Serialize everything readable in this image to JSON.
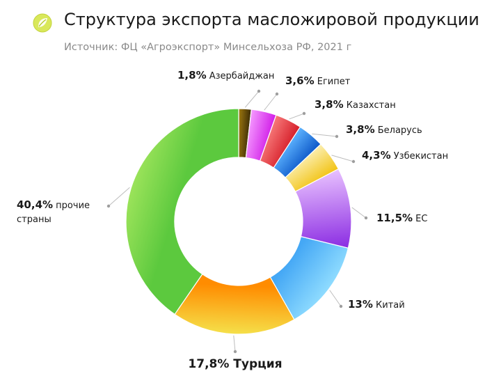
{
  "header": {
    "title": "Структура экспорта масложировой продукции",
    "subtitle": "Источник: ФЦ «Агроэкспорт» Минсельхоза РФ, 2021 г",
    "logo_icon": "leaf-circle-logo"
  },
  "colors": {
    "leader_line": "#bdbdbd",
    "dot": "#9e9e9e"
  },
  "chart_data": {
    "type": "pie",
    "variant": "donut",
    "unit": "%",
    "slices": [
      {
        "name": "Азербайджан",
        "value": 1.8,
        "value_label": "1,8%",
        "color_light": "#a07a10",
        "color_dark": "#3a2a05"
      },
      {
        "name": "Египет",
        "value": 3.6,
        "value_label": "3,6%",
        "color_light": "#f59bff",
        "color_dark": "#d11ee8"
      },
      {
        "name": "Казахстан",
        "value": 3.8,
        "value_label": "3,8%",
        "color_light": "#f77a7a",
        "color_dark": "#d61f2a"
      },
      {
        "name": "Беларусь",
        "value": 3.8,
        "value_label": "3,8%",
        "color_light": "#5db3ff",
        "color_dark": "#0d58c8"
      },
      {
        "name": "Узбекистан",
        "value": 4.3,
        "value_label": "4,3%",
        "color_light": "#fbeeb0",
        "color_dark": "#f2c313"
      },
      {
        "name": "ЕС",
        "value": 11.5,
        "value_label": "11,5%",
        "color_light": "#e8c1ff",
        "color_dark": "#8a2be2"
      },
      {
        "name": "Китай",
        "value": 13.0,
        "value_label": "13%",
        "color_light": "#8fdcff",
        "color_dark": "#45a8f5"
      },
      {
        "name": "Турция",
        "value": 17.8,
        "value_label": "17,8%",
        "color_light": "#f5e04a",
        "color_dark": "#ff8c00"
      },
      {
        "name": "прочие страны",
        "value": 40.4,
        "value_label": "40,4%",
        "color_light": "#9be35a",
        "color_dark": "#5cc93e"
      }
    ]
  }
}
